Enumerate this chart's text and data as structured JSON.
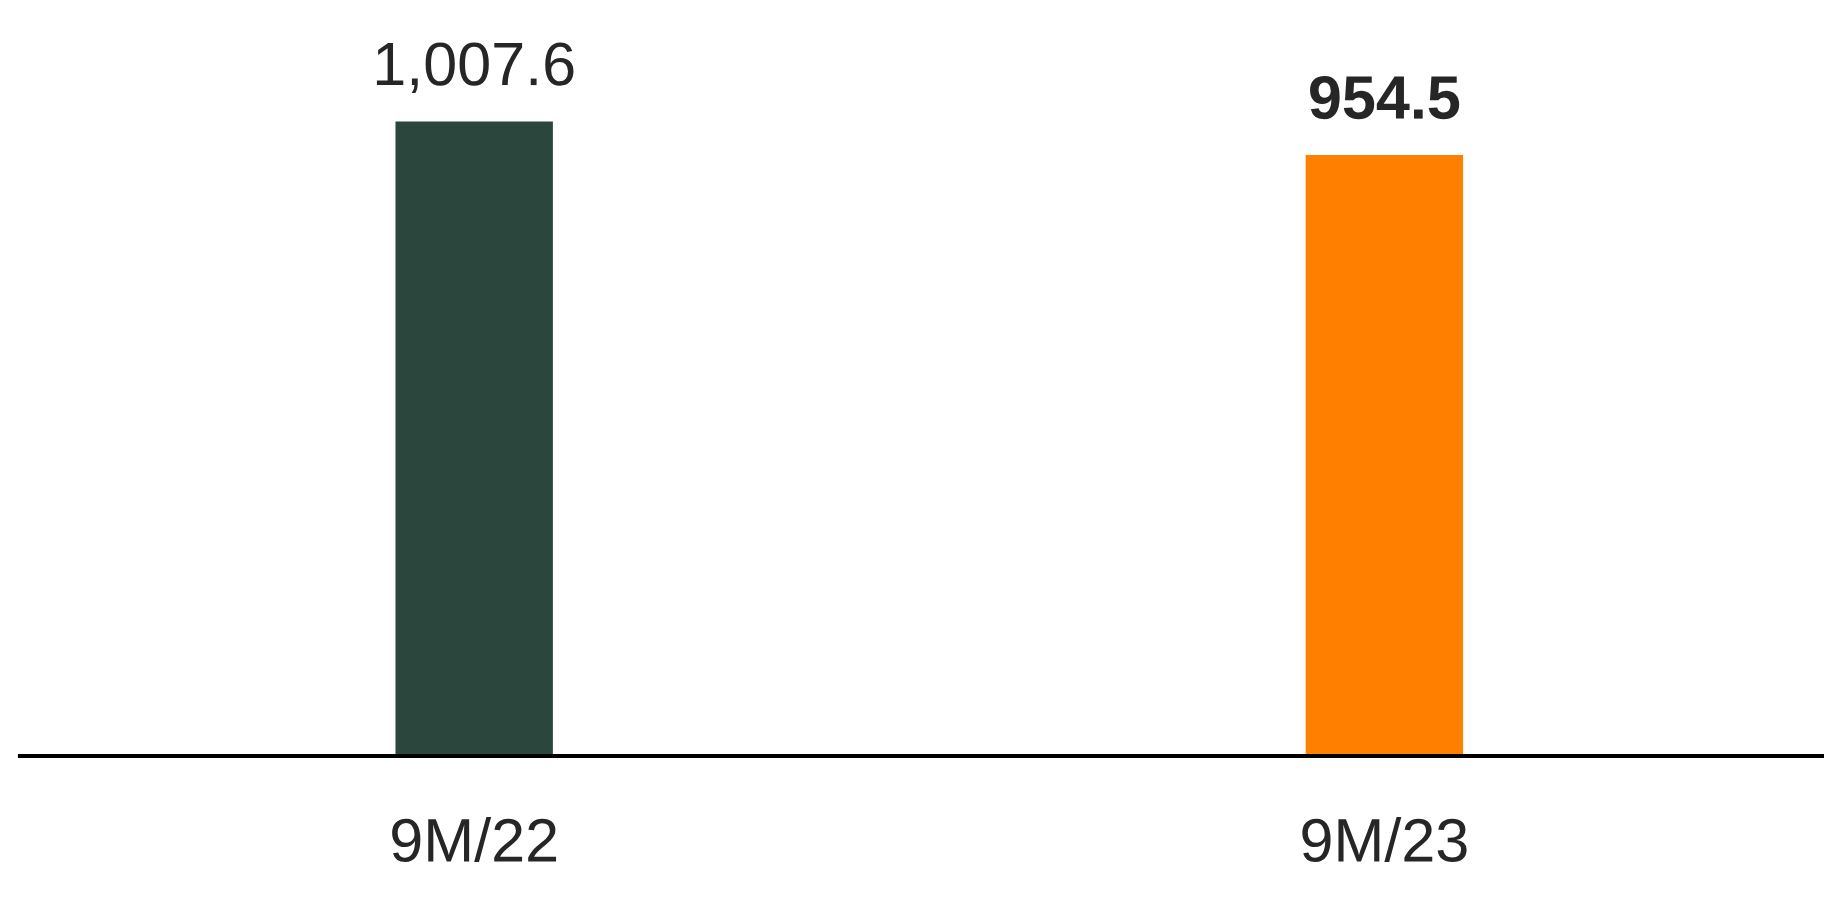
{
  "chart_data": {
    "type": "bar",
    "categories": [
      "9M/22",
      "9M/23"
    ],
    "values": [
      1007.6,
      954.5
    ],
    "colors": [
      "#2b463c",
      "#ff7f00"
    ],
    "value_labels": [
      "1,007.6",
      "954.5"
    ]
  }
}
